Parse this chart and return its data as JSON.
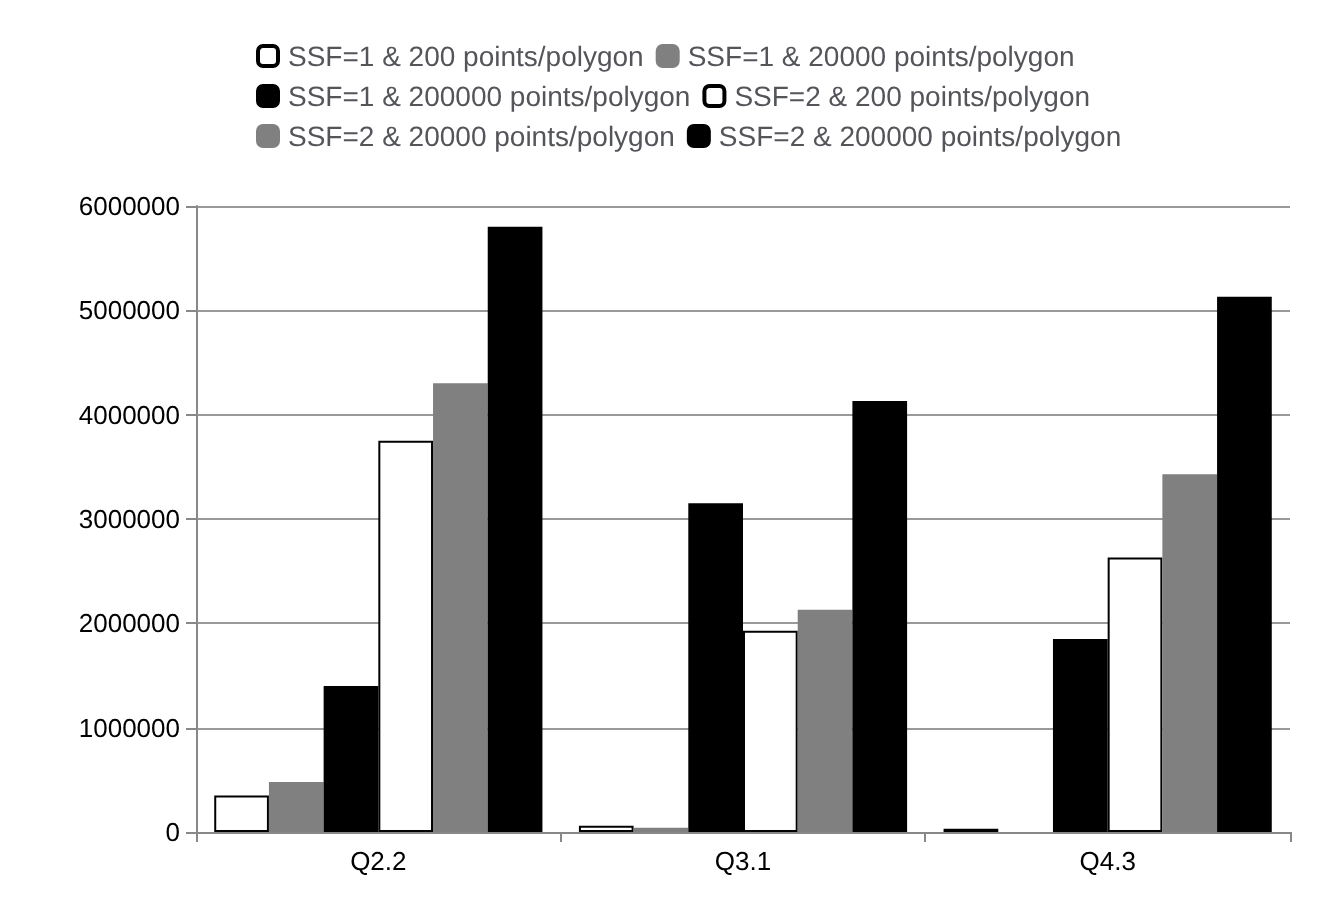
{
  "chart_data": {
    "type": "bar",
    "categories": [
      "Q2.2",
      "Q3.1",
      "Q4.3"
    ],
    "series": [
      {
        "name": "SSF=1 & 200 points/polygon",
        "color": "#ffffff",
        "values": [
          350000,
          60000,
          30000
        ]
      },
      {
        "name": "SSF=1 & 20000 points/polygon",
        "color": "#808080",
        "values": [
          480000,
          40000,
          null
        ]
      },
      {
        "name": "SSF=1 & 200000 points/polygon",
        "color": "#000000",
        "values": [
          1400000,
          3150000,
          1850000
        ]
      },
      {
        "name": "SSF=2 & 200 points/polygon",
        "color": "#ffffff",
        "values": [
          3750000,
          1930000,
          2630000
        ]
      },
      {
        "name": "SSF=2 & 20000 points/polygon",
        "color": "#808080",
        "values": [
          4300000,
          2130000,
          3430000
        ]
      },
      {
        "name": "SSF=2 & 200000 points/polygon",
        "color": "#000000",
        "values": [
          5800000,
          4130000,
          5130000
        ]
      }
    ],
    "ylim": [
      0,
      6000000
    ],
    "yticks": [
      0,
      1000000,
      2000000,
      3000000,
      4000000,
      5000000,
      6000000
    ],
    "grid": "y",
    "legend": "top"
  }
}
